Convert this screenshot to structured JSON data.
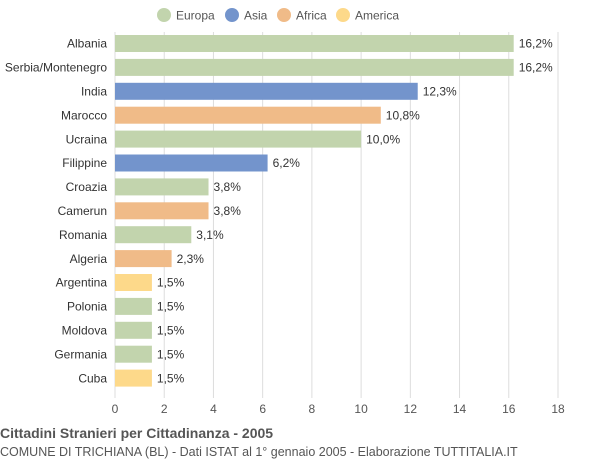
{
  "colors": {
    "Europa": "#c2d4ad",
    "Asia": "#7394cc",
    "Africa": "#f0bb88",
    "America": "#fdd98a",
    "grid": "#dddddd",
    "text": "#333333"
  },
  "chart_data": {
    "type": "bar",
    "orientation": "horizontal",
    "title": "Cittadini Stranieri per Cittadinanza - 2005",
    "subtitle": "COMUNE DI TRICHIANA (BL) - Dati ISTAT al 1° gennaio 2005 - Elaborazione TUTTITALIA.IT",
    "legend_position": "top",
    "legend": [
      "Europa",
      "Asia",
      "Africa",
      "America"
    ],
    "xlim": [
      0,
      18
    ],
    "xticks": [
      0,
      2,
      4,
      6,
      8,
      10,
      12,
      14,
      16,
      18
    ],
    "grid": true,
    "categories": [
      "Albania",
      "Serbia/Montenegro",
      "India",
      "Marocco",
      "Ucraina",
      "Filippine",
      "Croazia",
      "Camerun",
      "Romania",
      "Algeria",
      "Argentina",
      "Polonia",
      "Moldova",
      "Germania",
      "Cuba"
    ],
    "values": [
      16.2,
      16.2,
      12.3,
      10.8,
      10.0,
      6.2,
      3.8,
      3.8,
      3.1,
      2.3,
      1.5,
      1.5,
      1.5,
      1.5,
      1.5
    ],
    "labels": [
      "16,2%",
      "16,2%",
      "12,3%",
      "10,8%",
      "10,0%",
      "6,2%",
      "3,8%",
      "3,8%",
      "3,1%",
      "2,3%",
      "1,5%",
      "1,5%",
      "1,5%",
      "1,5%",
      "1,5%"
    ],
    "groups": [
      "Europa",
      "Europa",
      "Asia",
      "Africa",
      "Europa",
      "Asia",
      "Europa",
      "Africa",
      "Europa",
      "Africa",
      "America",
      "Europa",
      "Europa",
      "Europa",
      "America"
    ]
  }
}
